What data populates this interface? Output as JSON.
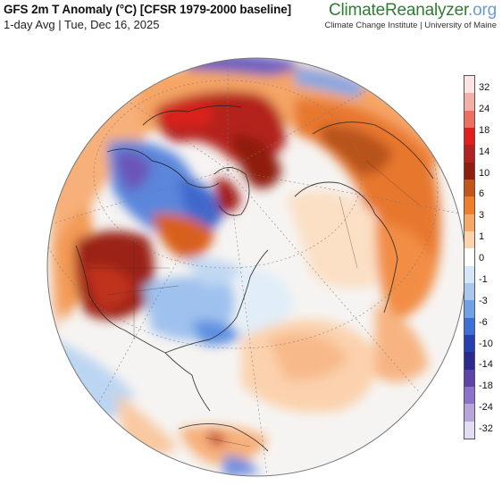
{
  "header": {
    "title": "GFS 2m T Anomaly (°C) [CFSR 1979-2000 baseline]",
    "subtitle": "1-day Avg | Tue, Dec 16, 2025"
  },
  "brand": {
    "name_part1": "ClimateReanalyzer",
    "name_part2": ".org",
    "affiliation": "Climate Change Institute | University of Maine"
  },
  "legend": {
    "labels": [
      "32",
      "24",
      "18",
      "14",
      "10",
      "6",
      "3",
      "1",
      "0",
      "-1",
      "-3",
      "-6",
      "-10",
      "-14",
      "-18",
      "-24",
      "-32"
    ],
    "colors": [
      "#fbe4e1",
      "#f4b0a6",
      "#ee6f62",
      "#e41d1d",
      "#b22222",
      "#8c1f0e",
      "#c2551a",
      "#ef7e2a",
      "#f6a866",
      "#fbd3ad",
      "#ffffff",
      "#d6e6f6",
      "#a9c8ef",
      "#6ea2e4",
      "#3d6fd4",
      "#2740b0",
      "#2c2a8e",
      "#5d45a8",
      "#8c72c8",
      "#b7a6dc",
      "#e4dcf1"
    ]
  },
  "map": {
    "projection": "orthographic",
    "center": "north polar, North Atlantic / North America facing"
  }
}
